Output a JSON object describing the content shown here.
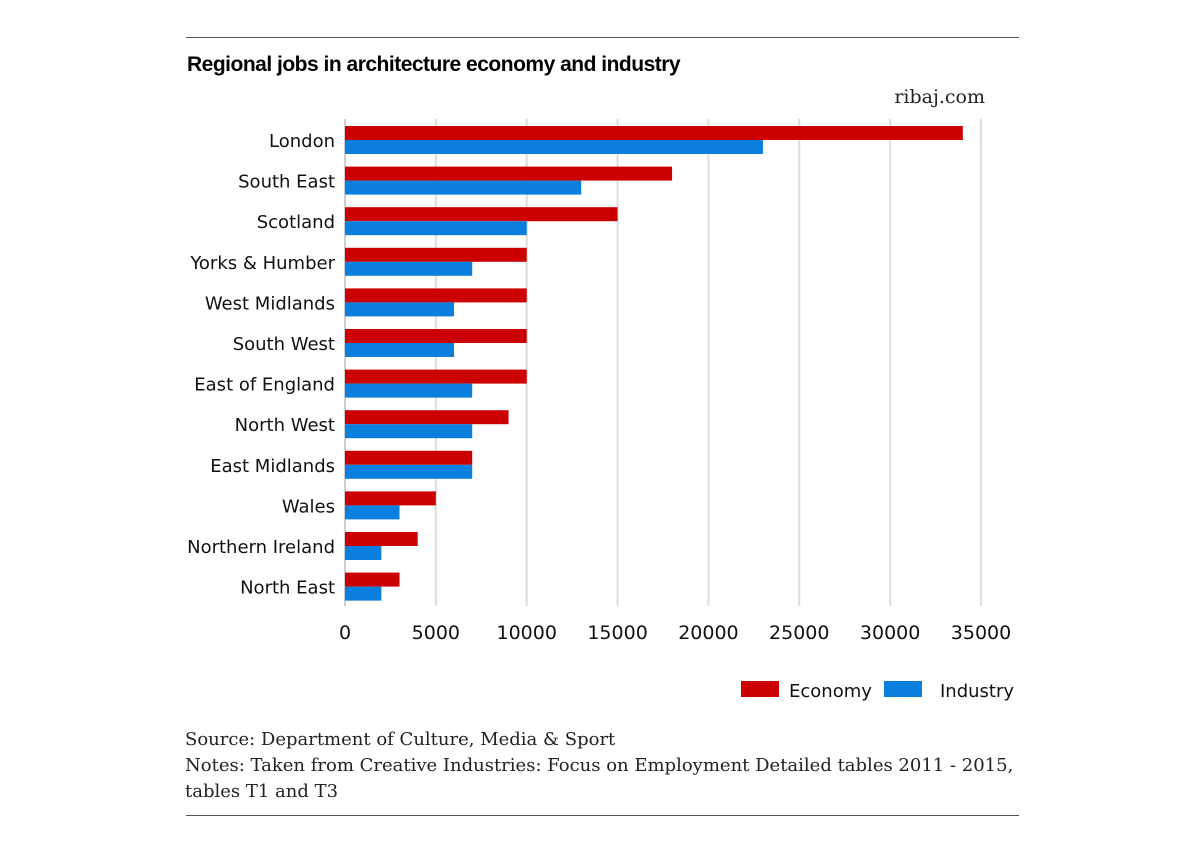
{
  "title": "Regional jobs in architecture economy and industry",
  "brand": "ribaj.com",
  "source": "Source: Department of Culture, Media & Sport",
  "notes": "Notes: Taken from Creative Industries: Focus on Employment Detailed tables 2011 - 2015, tables T1 and T3",
  "colors": {
    "economy": "#cc0000",
    "industry": "#0a7fdd",
    "grid": "#dddddd"
  },
  "chart_data": {
    "type": "bar",
    "orientation": "horizontal",
    "title": "Regional jobs in architecture economy and industry",
    "xlabel": "",
    "ylabel": "",
    "xlim": [
      0,
      35000
    ],
    "x_ticks": [
      0,
      5000,
      10000,
      15000,
      20000,
      25000,
      30000,
      35000
    ],
    "grid": true,
    "legend_position": "bottom-right",
    "categories": [
      "London",
      "South East",
      "Scotland",
      "Yorks & Humber",
      "West Midlands",
      "South West",
      "East of England",
      "North West",
      "East Midlands",
      "Wales",
      "Northern Ireland",
      "North East"
    ],
    "series": [
      {
        "name": "Economy",
        "color": "#cc0000",
        "values": [
          34000,
          18000,
          15000,
          10000,
          10000,
          10000,
          10000,
          9000,
          7000,
          5000,
          4000,
          3000
        ]
      },
      {
        "name": "Industry",
        "color": "#0a7fdd",
        "values": [
          23000,
          13000,
          10000,
          7000,
          6000,
          6000,
          7000,
          7000,
          7000,
          3000,
          2000,
          2000
        ]
      }
    ]
  }
}
